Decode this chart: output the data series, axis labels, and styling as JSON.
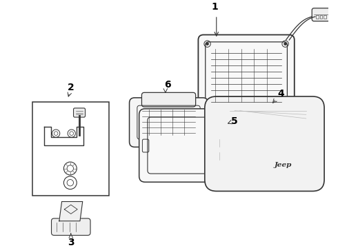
{
  "background_color": "#ffffff",
  "line_color": "#333333",
  "label_color": "#000000",
  "fig_width": 4.9,
  "fig_height": 3.6,
  "dpi": 100,
  "label_fontsize": 10,
  "label_fontweight": "bold"
}
